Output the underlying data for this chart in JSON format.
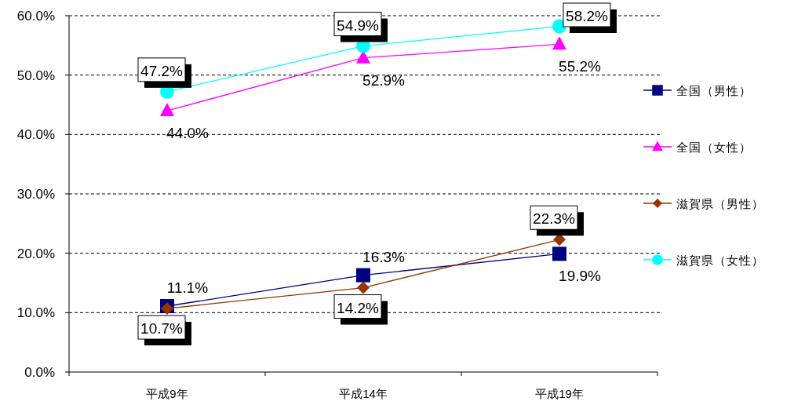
{
  "chart_data": {
    "type": "line",
    "categories": [
      "平成9年",
      "平成14年",
      "平成19年"
    ],
    "ylim": [
      0,
      60
    ],
    "yticks": [
      {
        "value": 0,
        "label": "0.0%"
      },
      {
        "value": 10,
        "label": "10.0%"
      },
      {
        "value": 20,
        "label": "20.0%"
      },
      {
        "value": 30,
        "label": "30.0%"
      },
      {
        "value": 40,
        "label": "40.0%"
      },
      {
        "value": 50,
        "label": "50.0%"
      },
      {
        "value": 60,
        "label": "60.0%"
      }
    ],
    "grid": "y",
    "legend": "right",
    "line_style": "solid",
    "series": [
      {
        "name": "全国（男性）",
        "color": "#000080",
        "marker": "square",
        "values": [
          11.1,
          16.3,
          19.9
        ],
        "value_labels": [
          "11.1%",
          "16.3%",
          "19.9%"
        ]
      },
      {
        "name": "全国（女性）",
        "color": "#ff00ff",
        "marker": "triangle",
        "values": [
          44.0,
          52.9,
          55.2
        ],
        "value_labels": [
          "44.0%",
          "52.9%",
          "55.2%"
        ]
      },
      {
        "name": "滋賀県（男性）",
        "color": "#993300",
        "marker": "diamond",
        "values": [
          10.7,
          14.2,
          22.3
        ],
        "value_labels": [
          "10.7%",
          "14.2%",
          "22.3%"
        ]
      },
      {
        "name": "滋賀県（女性）",
        "color": "#00ffff",
        "marker": "circle",
        "values": [
          47.2,
          54.9,
          58.2
        ],
        "value_labels": [
          "47.2%",
          "54.9%",
          "58.2%"
        ]
      }
    ]
  }
}
